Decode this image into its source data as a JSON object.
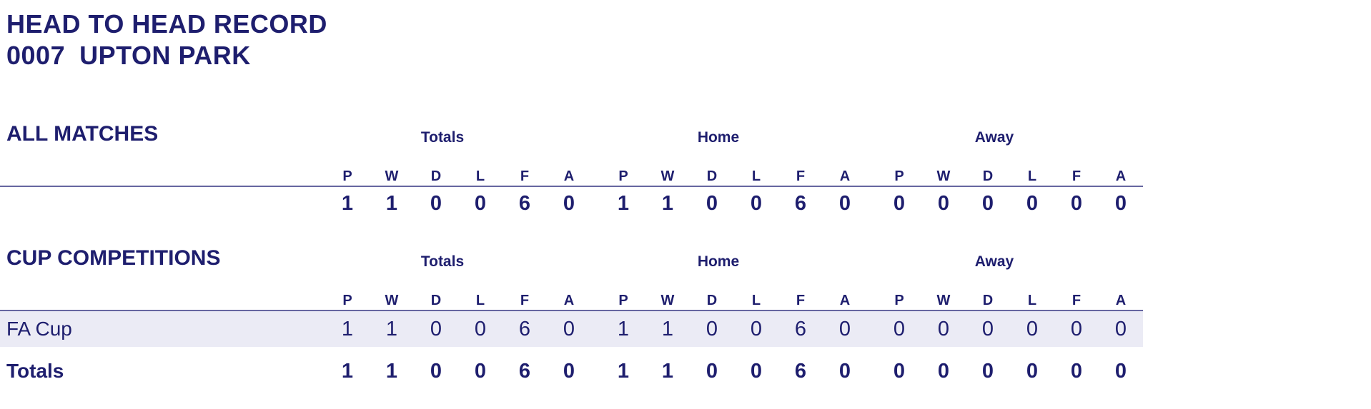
{
  "header": {
    "title": "HEAD TO HEAD RECORD",
    "opponent_code": "0007",
    "opponent_name": "UPTON PARK"
  },
  "columns": [
    "P",
    "W",
    "D",
    "L",
    "F",
    "A"
  ],
  "groups": [
    "Totals",
    "Home",
    "Away"
  ],
  "sections": [
    {
      "heading": "ALL MATCHES",
      "rows": [
        {
          "label": "",
          "totals": [
            "1",
            "1",
            "0",
            "0",
            "6",
            "0"
          ],
          "home": [
            "1",
            "1",
            "0",
            "0",
            "6",
            "0"
          ],
          "away": [
            "0",
            "0",
            "0",
            "0",
            "0",
            "0"
          ]
        }
      ]
    },
    {
      "heading": "CUP COMPETITIONS",
      "rows": [
        {
          "label": "FA Cup",
          "totals": [
            "1",
            "1",
            "0",
            "0",
            "6",
            "0"
          ],
          "home": [
            "1",
            "1",
            "0",
            "0",
            "6",
            "0"
          ],
          "away": [
            "0",
            "0",
            "0",
            "0",
            "0",
            "0"
          ]
        },
        {
          "label": "Totals",
          "totals": [
            "1",
            "1",
            "0",
            "0",
            "6",
            "0"
          ],
          "home": [
            "1",
            "1",
            "0",
            "0",
            "6",
            "0"
          ],
          "away": [
            "0",
            "0",
            "0",
            "0",
            "0",
            "0"
          ]
        }
      ]
    }
  ],
  "colors": {
    "text_navy": "#1e1e6e",
    "row_highlight": "#ebebf5",
    "rule": "#6666a0"
  }
}
